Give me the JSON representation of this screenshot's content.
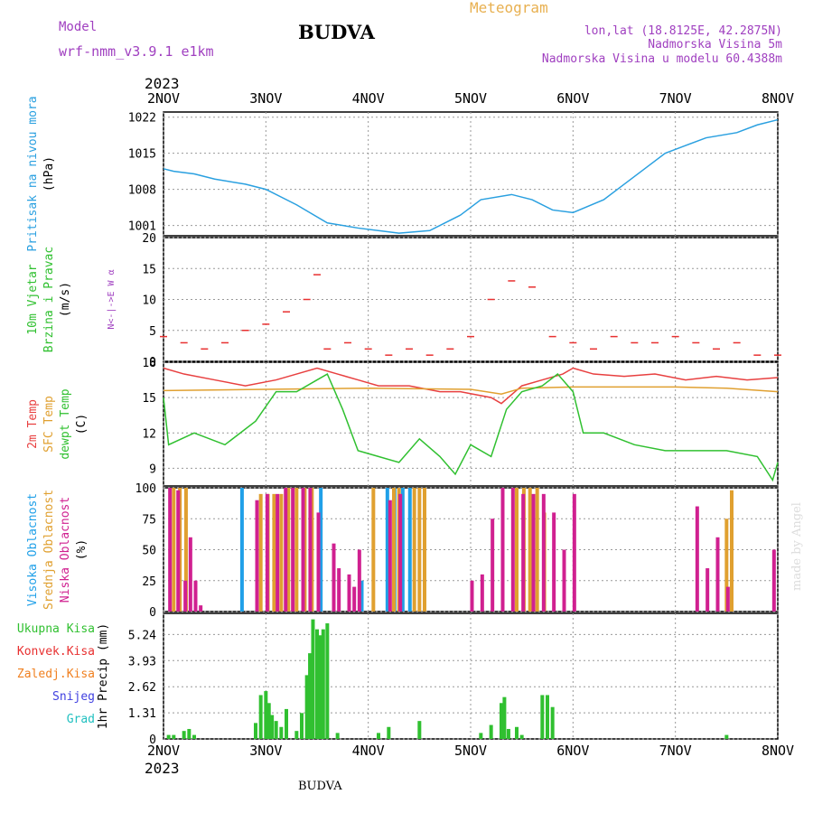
{
  "header": {
    "model_label": "Model",
    "model_name": "wrf-nmm_v3.9.1 e1km",
    "station": "BUDVA",
    "meteogram_label": "Meteogram",
    "lonlat": "lon,lat (18.8125E, 42.2875N)",
    "elevation": "Nadmorska Visina 5m",
    "model_elevation": "Nadmorska Visina u modelu 60.4388m",
    "year": "2023",
    "footer_station": "BUDVA",
    "credit": "made by Angel"
  },
  "chart_data": [
    {
      "type": "line",
      "panel": "pressure",
      "ylabel": [
        "Pritisak na nivou mora",
        "(hPa)"
      ],
      "ylim": [
        999,
        1023
      ],
      "yticks": [
        1001,
        1008,
        1015,
        1022
      ],
      "x_categories": [
        "2NOV",
        "3NOV",
        "4NOV",
        "5NOV",
        "6NOV",
        "7NOV",
        "8NOV"
      ],
      "series": [
        {
          "color": "#2aa0e0",
          "x": [
            0,
            0.1,
            0.3,
            0.5,
            0.8,
            1.0,
            1.3,
            1.6,
            1.9,
            2.3,
            2.6,
            2.9,
            3.1,
            3.4,
            3.6,
            3.8,
            4.0,
            4.3,
            4.5,
            4.7,
            4.9,
            5.1,
            5.3,
            5.6,
            5.8,
            6.0
          ],
          "values": [
            1012,
            1011.5,
            1011,
            1010,
            1009,
            1008,
            1005,
            1001.5,
            1000.5,
            999.5,
            1000,
            1003,
            1006,
            1007,
            1006,
            1004,
            1003.5,
            1006,
            1009,
            1012,
            1015,
            1016.5,
            1018,
            1019,
            1020.5,
            1021.5
          ]
        }
      ]
    },
    {
      "type": "scatter",
      "panel": "wind",
      "ylabel": [
        "10m Vjetar",
        "Brzina i Pravac",
        "(m/s)"
      ],
      "compass": "N<-|->E  W  α",
      "ylim": [
        0,
        20
      ],
      "yticks": [
        0,
        5,
        10,
        15,
        20
      ],
      "x_categories": [
        "2NOV",
        "3NOV",
        "4NOV",
        "5NOV",
        "6NOV",
        "7NOV",
        "8NOV"
      ],
      "series": [
        {
          "name": "speed",
          "color": "#e83030",
          "x": [
            0,
            0.2,
            0.4,
            0.6,
            0.8,
            1.0,
            1.2,
            1.4,
            1.5,
            1.6,
            1.8,
            2.0,
            2.2,
            2.4,
            2.6,
            2.8,
            3.0,
            3.2,
            3.4,
            3.6,
            3.8,
            4.0,
            4.2,
            4.4,
            4.6,
            4.8,
            5.0,
            5.2,
            5.4,
            5.6,
            5.8,
            6.0
          ],
          "values": [
            4,
            3,
            2,
            3,
            5,
            6,
            8,
            10,
            14,
            2,
            3,
            2,
            1,
            2,
            1,
            2,
            4,
            10,
            13,
            12,
            4,
            3,
            2,
            4,
            3,
            3,
            4,
            3,
            2,
            3,
            1,
            1
          ]
        }
      ]
    },
    {
      "type": "line",
      "panel": "temperature",
      "ylabel": [
        "2m Temp",
        "SFC Temp",
        "dewpt Temp",
        "(C)"
      ],
      "ylim": [
        7.5,
        18
      ],
      "yticks": [
        9,
        12,
        15,
        18
      ],
      "x_categories": [
        "2NOV",
        "3NOV",
        "4NOV",
        "5NOV",
        "6NOV",
        "7NOV",
        "8NOV"
      ],
      "series": [
        {
          "name": "2m Temp",
          "color": "#e84040",
          "x": [
            0,
            0.2,
            0.5,
            0.8,
            1.1,
            1.3,
            1.5,
            1.7,
            1.9,
            2.1,
            2.4,
            2.7,
            2.9,
            3.2,
            3.3,
            3.5,
            3.7,
            3.9,
            4.0,
            4.2,
            4.5,
            4.8,
            5.1,
            5.4,
            5.7,
            6.0
          ],
          "values": [
            17.5,
            17,
            16.5,
            16,
            16.5,
            17,
            17.5,
            17,
            16.5,
            16,
            16,
            15.5,
            15.5,
            15,
            14.5,
            16,
            16.5,
            17,
            17.5,
            17,
            16.8,
            17,
            16.5,
            16.8,
            16.5,
            16.7
          ]
        },
        {
          "name": "SFC Temp",
          "color": "#e0a030",
          "x": [
            0,
            1.0,
            2.0,
            3.0,
            3.3,
            3.5,
            4.0,
            5.0,
            5.5,
            6.0
          ],
          "values": [
            15.6,
            15.7,
            15.8,
            15.7,
            15.3,
            15.8,
            15.9,
            15.9,
            15.8,
            15.5
          ]
        },
        {
          "name": "dewpt Temp",
          "color": "#30c030",
          "x": [
            0,
            0.05,
            0.3,
            0.6,
            0.9,
            1.1,
            1.3,
            1.5,
            1.6,
            1.75,
            1.9,
            2.1,
            2.3,
            2.5,
            2.7,
            2.85,
            3.0,
            3.2,
            3.35,
            3.5,
            3.7,
            3.85,
            4.0,
            4.1,
            4.3,
            4.6,
            4.9,
            5.2,
            5.5,
            5.8,
            5.95,
            6.0
          ],
          "values": [
            15,
            11,
            12,
            11,
            13,
            15.5,
            15.5,
            16.5,
            17,
            14,
            10.5,
            10,
            9.5,
            11.5,
            10,
            8.5,
            11,
            10,
            14,
            15.5,
            16,
            17,
            15.5,
            12,
            12,
            11,
            10.5,
            10.5,
            10.5,
            10,
            8,
            9.5
          ]
        }
      ]
    },
    {
      "type": "bar",
      "panel": "clouds",
      "ylabel": [
        "Visoka Oblacnost",
        "Srednja Oblacnost",
        "Niska Oblacnost",
        "(%)"
      ],
      "ylim": [
        0,
        100
      ],
      "yticks": [
        0,
        25,
        50,
        75,
        100
      ],
      "x_categories": [
        "2NOV",
        "3NOV",
        "4NOV",
        "5NOV",
        "6NOV",
        "7NOV",
        "8NOV"
      ],
      "series": [
        {
          "name": "Visoka Oblacnost",
          "color": "#20a0e8",
          "x": [
            0.78,
            1.55,
            1.95,
            2.2,
            2.27,
            2.35,
            2.42
          ],
          "values": [
            100,
            100,
            25,
            100,
            100,
            100,
            100
          ]
        },
        {
          "name": "Srednja Oblacnost",
          "color": "#e0a030",
          "x": [
            0.1,
            0.16,
            0.22,
            0.95,
            1.02,
            1.08,
            1.15,
            1.22,
            1.3,
            1.38,
            1.45,
            2.05,
            2.25,
            2.3,
            2.45,
            2.5,
            2.55,
            3.45,
            3.52,
            3.58,
            3.65,
            3.72,
            5.5,
            5.55
          ],
          "values": [
            100,
            100,
            100,
            95,
            95,
            95,
            95,
            100,
            100,
            100,
            100,
            100,
            100,
            100,
            100,
            100,
            100,
            100,
            100,
            100,
            100,
            80,
            75,
            98
          ]
        },
        {
          "name": "Niska Oblacnost",
          "color": "#d02090",
          "x": [
            0.05,
            0.13,
            0.2,
            0.25,
            0.3,
            0.35,
            0.9,
            1.0,
            1.1,
            1.18,
            1.25,
            1.35,
            1.42,
            1.5,
            1.65,
            1.7,
            1.8,
            1.85,
            1.9,
            2.2,
            2.3,
            3.0,
            3.1,
            3.2,
            3.3,
            3.4,
            3.5,
            3.6,
            3.7,
            3.8,
            3.9,
            4.0,
            5.2,
            5.3,
            5.4,
            5.95,
            5.5
          ],
          "values": [
            100,
            98,
            25,
            60,
            25,
            5,
            90,
            95,
            95,
            100,
            100,
            100,
            100,
            80,
            55,
            35,
            30,
            20,
            50,
            90,
            95,
            25,
            30,
            75,
            100,
            100,
            95,
            95,
            95,
            80,
            50,
            95,
            85,
            35,
            60,
            50,
            20
          ]
        }
      ]
    },
    {
      "type": "bar",
      "panel": "precipitation",
      "ylabel": [
        "1hr Precip (mm)"
      ],
      "legend": [
        "Ukupna Kisa",
        "Konvek.Kisa",
        "Zaledj.Kisa",
        "Snijeg",
        "Grad"
      ],
      "legend_colors": [
        "#30c030",
        "#e83030",
        "#f08020",
        "#4040e0",
        "#20c0c0"
      ],
      "ylim": [
        0,
        6.3
      ],
      "yticks": [
        0,
        1.31,
        2.62,
        3.93,
        5.24
      ],
      "x_categories": [
        "2NOV",
        "3NOV",
        "4NOV",
        "5NOV",
        "6NOV",
        "7NOV",
        "8NOV"
      ],
      "series": [
        {
          "name": "Ukupna Kisa",
          "color": "#30c030",
          "x": [
            0.05,
            0.1,
            0.2,
            0.25,
            0.3,
            0.9,
            0.95,
            1.0,
            1.03,
            1.06,
            1.1,
            1.15,
            1.2,
            1.3,
            1.35,
            1.4,
            1.43,
            1.46,
            1.5,
            1.53,
            1.56,
            1.6,
            1.7,
            2.1,
            2.2,
            2.5,
            3.1,
            3.2,
            3.3,
            3.33,
            3.37,
            3.45,
            3.5,
            3.7,
            3.75,
            3.8,
            5.5
          ],
          "values": [
            0.2,
            0.2,
            0.4,
            0.5,
            0.2,
            0.8,
            2.2,
            2.4,
            1.8,
            1.2,
            0.9,
            0.6,
            1.5,
            0.4,
            1.3,
            3.2,
            4.3,
            6.0,
            5.5,
            5.2,
            5.5,
            5.8,
            0.3,
            0.3,
            0.6,
            0.9,
            0.3,
            0.7,
            1.8,
            2.1,
            0.5,
            0.6,
            0.2,
            2.2,
            2.2,
            1.6,
            0.2
          ]
        }
      ]
    }
  ]
}
